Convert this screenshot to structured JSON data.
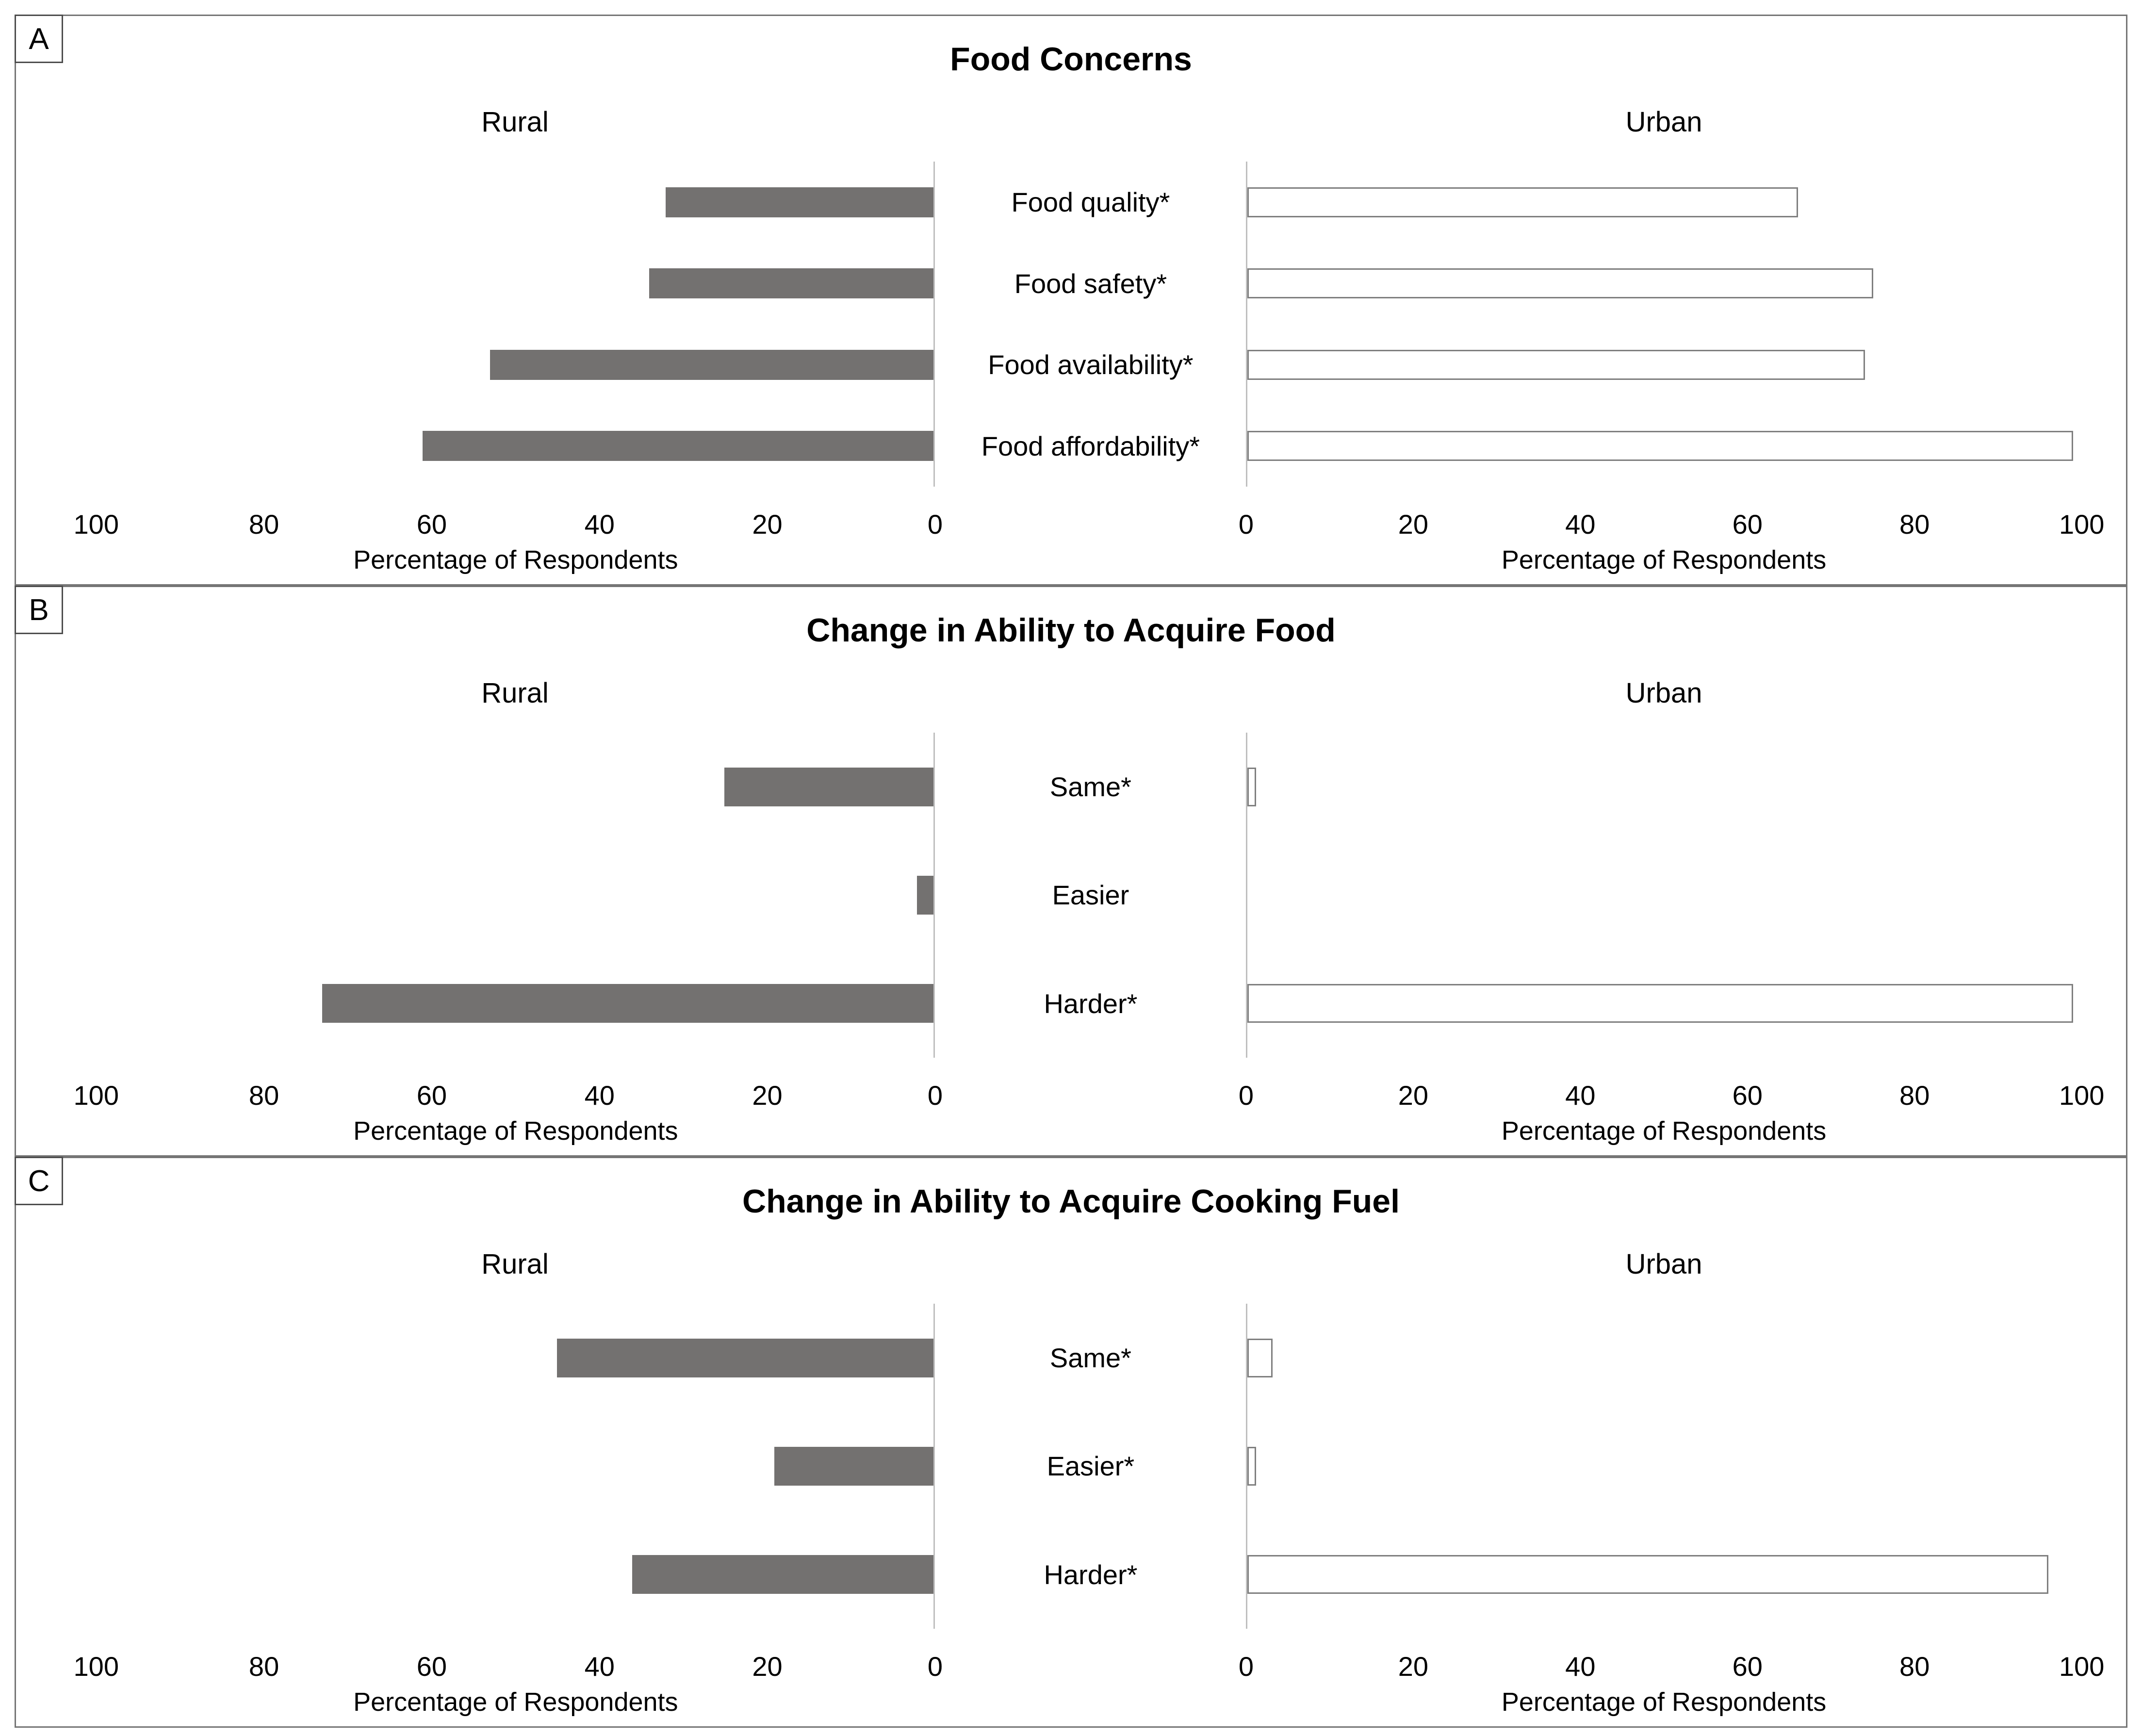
{
  "figure": {
    "group_left": "Rural",
    "group_right": "Urban",
    "axis_label": "Percentage of Respondents",
    "axis_ticks": [
      0,
      20,
      40,
      60,
      80,
      100
    ],
    "panel_letters": [
      "A",
      "B",
      "C"
    ],
    "colors": {
      "rural_bar_fill": "#737170",
      "urban_bar_fill": "#ffffff",
      "urban_bar_border": "#7f7f7f",
      "axis_line": "#bfbfbf",
      "panel_border": "#757575",
      "letter_box_border": "#4d4d4d",
      "text": "#000000"
    }
  },
  "chart_data": [
    {
      "panel_letter": "A",
      "type": "bar",
      "orientation": "horizontal-diverging",
      "title": "Food Concerns",
      "categories": [
        "Food quality*",
        "Food safety*",
        "Food availability*",
        "Food affordability*"
      ],
      "series": [
        {
          "name": "Rural",
          "side": "left",
          "values": [
            32,
            34,
            53,
            61
          ]
        },
        {
          "name": "Urban",
          "side": "right",
          "values": [
            66,
            75,
            74,
            99
          ]
        }
      ],
      "xlabel": "Percentage of Respondents",
      "xlim": [
        0,
        100
      ],
      "grid": false,
      "legend_position": "column-headers"
    },
    {
      "panel_letter": "B",
      "type": "bar",
      "orientation": "horizontal-diverging",
      "title": "Change in Ability to Acquire Food",
      "categories": [
        "Same*",
        "Easier",
        "Harder*"
      ],
      "series": [
        {
          "name": "Rural",
          "side": "left",
          "values": [
            25,
            2,
            73
          ]
        },
        {
          "name": "Urban",
          "side": "right",
          "values": [
            1,
            0,
            99
          ]
        }
      ],
      "xlabel": "Percentage of Respondents",
      "xlim": [
        0,
        100
      ],
      "grid": false,
      "legend_position": "column-headers"
    },
    {
      "panel_letter": "C",
      "type": "bar",
      "orientation": "horizontal-diverging",
      "title": "Change in Ability to Acquire Cooking Fuel",
      "categories": [
        "Same*",
        "Easier*",
        "Harder*"
      ],
      "series": [
        {
          "name": "Rural",
          "side": "left",
          "values": [
            45,
            19,
            36
          ]
        },
        {
          "name": "Urban",
          "side": "right",
          "values": [
            3,
            1,
            96
          ]
        }
      ],
      "xlabel": "Percentage of Respondents",
      "xlim": [
        0,
        100
      ],
      "grid": false,
      "legend_position": "column-headers"
    }
  ]
}
